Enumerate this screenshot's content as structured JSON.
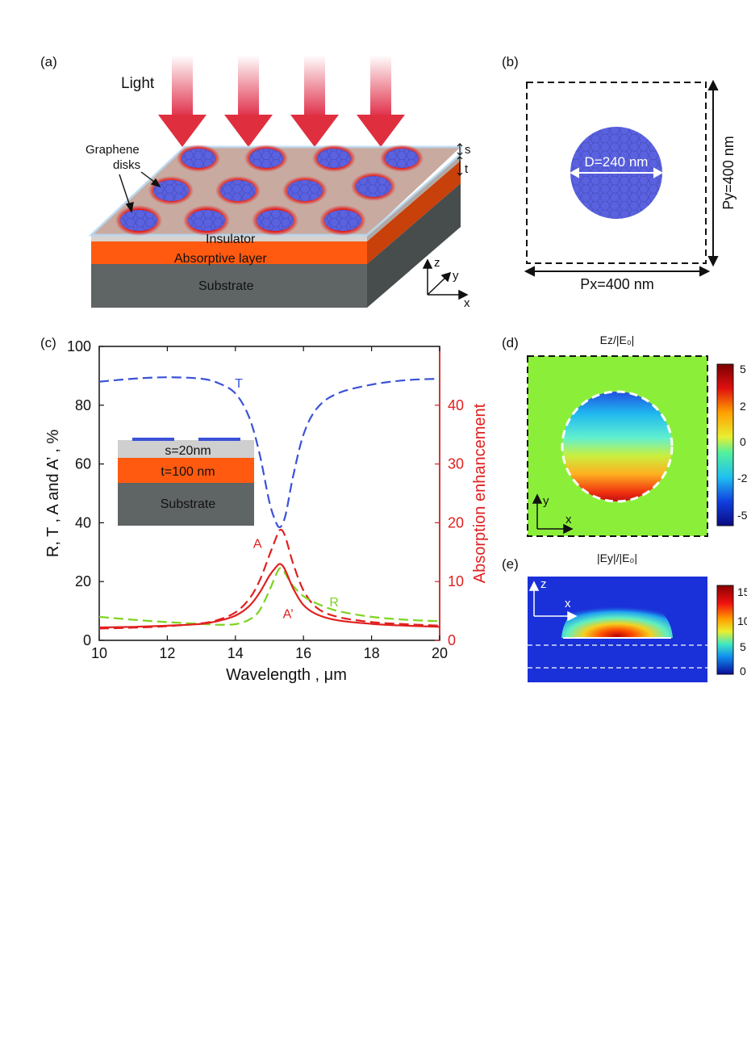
{
  "panels": {
    "a": "(a)",
    "b": "(b)",
    "c": "(c)",
    "d": "(d)",
    "e": "(e)"
  },
  "panel_a": {
    "light": "Light",
    "graphene_line1": "Graphene",
    "graphene_line2": "disks",
    "s": "s",
    "t": "t",
    "insulator": "Insulator",
    "absorptive": "Absorptive layer",
    "substrate": "Substrate",
    "axis_z": "z",
    "axis_y": "y",
    "axis_x": "x"
  },
  "panel_b": {
    "diameter": "D=240 nm",
    "px": "Px=400 nm",
    "py": "Py=400 nm"
  },
  "panel_d": {
    "title": "Ez/|E₀|",
    "colorbar_ticks": [
      "5",
      "2",
      "0",
      "-2",
      "-5"
    ],
    "axis_y": "y",
    "axis_x": "x"
  },
  "panel_e": {
    "title": "|Ey|/|E₀|",
    "colorbar_ticks": [
      "15",
      "10",
      "5",
      "0"
    ],
    "axis_z": "z",
    "axis_x": "x"
  },
  "inset": {
    "s_label": "s=20nm",
    "t_label": "t=100 nm",
    "substrate": "Substrate"
  },
  "colors": {
    "T": "#3a52d8",
    "A": "#e02020",
    "R": "#7ed321",
    "Aprime": "#e02020",
    "absorptive": "#ff5a10",
    "substrate": "#5f6464",
    "insulator": "#cfcfcf",
    "graphene": "#5a62e0",
    "field_bg": "#8bef3a"
  },
  "chart_data": {
    "type": "line",
    "title": "",
    "xlabel": "Wavelength , μm",
    "ylabel": "R, T , A and A’ , %",
    "y2label": "Absorption enhancement",
    "xlim": [
      10,
      20
    ],
    "ylim": [
      0,
      100
    ],
    "y2lim": [
      0,
      50
    ],
    "xticks": [
      10,
      12,
      14,
      16,
      18,
      20
    ],
    "yticks": [
      0,
      20,
      40,
      60,
      80,
      100
    ],
    "y2ticks": [
      0,
      10,
      20,
      30,
      40
    ],
    "series": [
      {
        "name": "T",
        "axis": "left",
        "style": "dashed",
        "color": "#3a52d8",
        "x": [
          10,
          11,
          12,
          13,
          13.5,
          14,
          14.4,
          14.7,
          15.0,
          15.2,
          15.3,
          15.4,
          15.5,
          15.7,
          16.0,
          16.4,
          17,
          18,
          19,
          20
        ],
        "y": [
          88,
          89,
          89.5,
          89,
          87.5,
          84,
          76,
          64,
          47,
          40,
          38.5,
          40,
          44,
          56,
          70,
          79,
          84,
          87,
          88.5,
          89
        ]
      },
      {
        "name": "A",
        "axis": "left",
        "style": "dashed",
        "color": "#e02020",
        "x": [
          10,
          11,
          12,
          13,
          13.5,
          14,
          14.4,
          14.7,
          15.0,
          15.2,
          15.3,
          15.4,
          15.5,
          15.7,
          16.0,
          16.4,
          17,
          18,
          19,
          20
        ],
        "y": [
          4,
          4.3,
          4.8,
          5.8,
          7,
          9.5,
          14,
          20,
          29,
          35,
          37.5,
          37,
          34,
          26,
          17,
          11,
          8,
          6.2,
          5.5,
          5
        ]
      },
      {
        "name": "R",
        "axis": "left",
        "style": "dashed",
        "color": "#7ed321",
        "x": [
          10,
          11,
          12,
          13,
          13.5,
          14,
          14.4,
          14.7,
          15.0,
          15.2,
          15.3,
          15.4,
          15.5,
          15.7,
          16.0,
          16.4,
          17,
          18,
          19,
          20
        ],
        "y": [
          8,
          7,
          6.2,
          5.6,
          5.3,
          5.5,
          7,
          10,
          17,
          22.5,
          24.5,
          24,
          22,
          18.5,
          15,
          12.5,
          10,
          8,
          7,
          6.5
        ]
      },
      {
        "name": "A’",
        "axis": "right",
        "style": "solid",
        "color": "#e02020",
        "x": [
          10,
          11,
          12,
          13,
          13.5,
          14,
          14.4,
          14.7,
          15.0,
          15.2,
          15.3,
          15.4,
          15.5,
          15.7,
          16.0,
          16.4,
          17,
          18,
          19,
          20
        ],
        "y": [
          2.2,
          2.3,
          2.5,
          2.8,
          3.3,
          4.2,
          5.8,
          8,
          11,
          12.5,
          13,
          12.6,
          11.5,
          8.8,
          6,
          4.4,
          3.4,
          2.8,
          2.5,
          2.3
        ]
      }
    ],
    "curve_labels": [
      {
        "text": "T",
        "x": 14.1,
        "y": 86,
        "color": "#3a52d8"
      },
      {
        "text": "A",
        "x": 14.65,
        "y": 31.5,
        "color": "#e02020"
      },
      {
        "text": "R",
        "x": 16.9,
        "y": 11.5,
        "color": "#7ed321"
      },
      {
        "text": "A’",
        "x": 15.55,
        "y": 7.5,
        "color": "#e02020"
      }
    ]
  }
}
